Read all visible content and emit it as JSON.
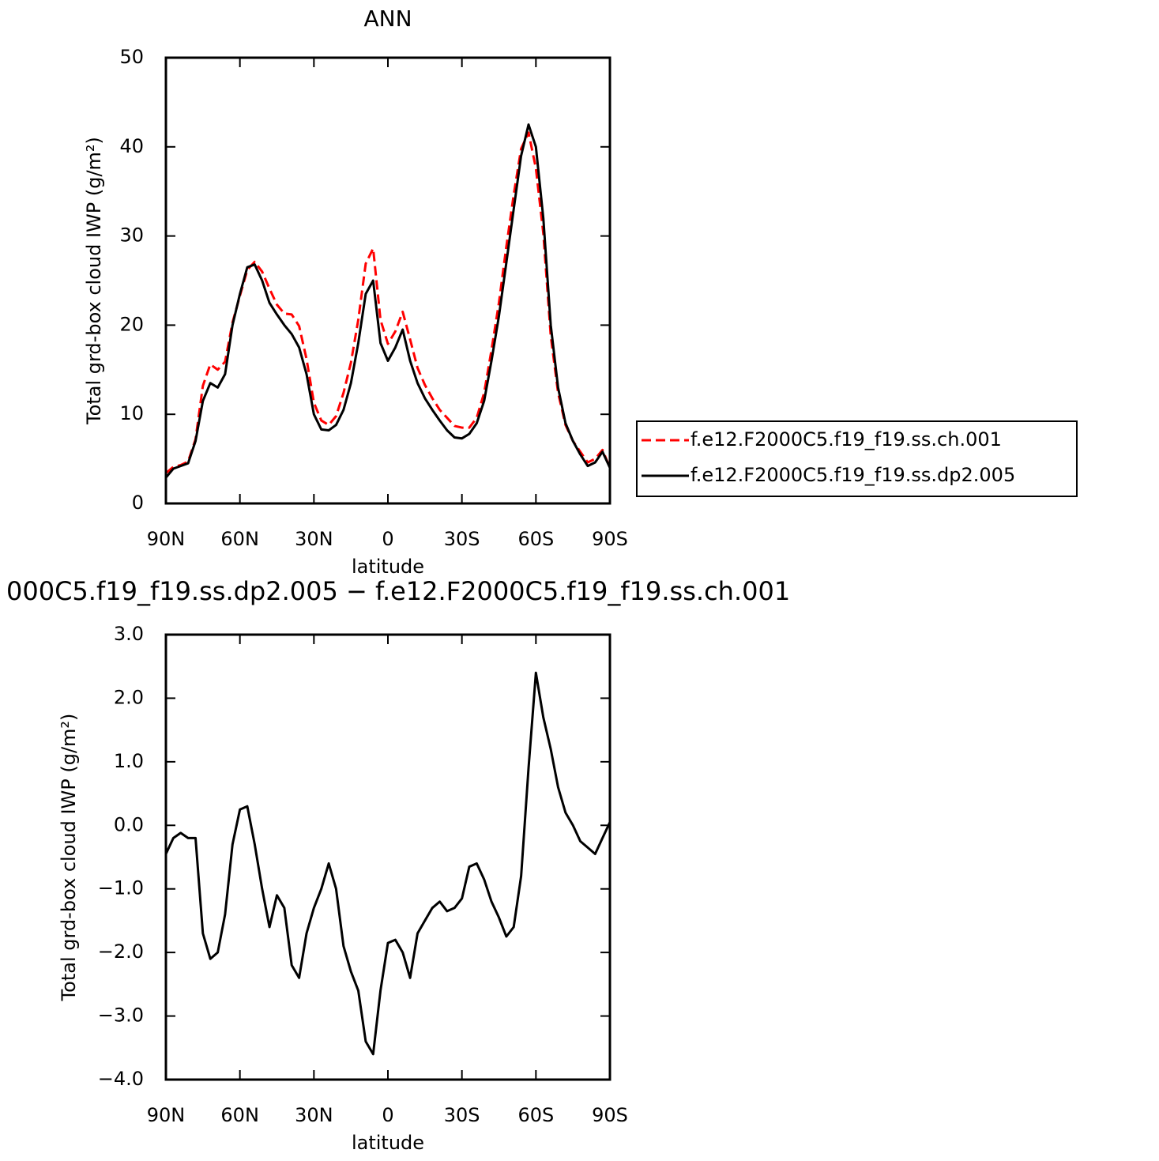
{
  "chart_data": [
    {
      "type": "line",
      "title": "ANN",
      "xlabel": "latitude",
      "ylabel": "Total grd-box cloud IWP (g/m²)",
      "x": [
        90,
        87,
        84,
        81,
        78,
        75,
        72,
        69,
        66,
        63,
        60,
        57,
        54,
        51,
        48,
        45,
        42,
        39,
        36,
        33,
        30,
        27,
        24,
        21,
        18,
        15,
        12,
        9,
        6,
        3,
        0,
        -3,
        -6,
        -9,
        -12,
        -15,
        -18,
        -21,
        -24,
        -27,
        -30,
        -33,
        -36,
        -39,
        -42,
        -45,
        -48,
        -51,
        -54,
        -57,
        -60,
        -63,
        -66,
        -69,
        -72,
        -75,
        -78,
        -81,
        -84,
        -87,
        -90
      ],
      "xlim": [
        90,
        -90
      ],
      "xticks": [
        {
          "value": 90,
          "label": "90N"
        },
        {
          "value": 60,
          "label": "60N"
        },
        {
          "value": 30,
          "label": "30N"
        },
        0,
        {
          "value": -30,
          "label": "30S"
        },
        {
          "value": -60,
          "label": "60S"
        },
        {
          "value": -90,
          "label": "90S"
        }
      ],
      "ylim": [
        0,
        50
      ],
      "yticks": [
        0,
        10,
        20,
        30,
        40,
        50
      ],
      "legend": "right",
      "series": [
        {
          "name": "f.e12.F2000C5.f19_f19.ss.ch.001",
          "color": "#ff0000",
          "dash": true,
          "values": [
            3.4,
            4.1,
            4.3,
            4.7,
            7.2,
            13.2,
            15.6,
            15.0,
            15.9,
            20.3,
            23.3,
            26.2,
            27.1,
            26,
            24.1,
            22.3,
            21.3,
            21.2,
            19.9,
            16.2,
            11.3,
            9.3,
            8.8,
            9.8,
            12.4,
            15.8,
            20.6,
            26.9,
            28.6,
            20.6,
            17.9,
            19.3,
            21.5,
            18.4,
            15.2,
            13.3,
            11.8,
            10.5,
            9.6,
            8.7,
            8.5,
            8.5,
            9.6,
            12.4,
            17.2,
            22.5,
            28.8,
            34.6,
            39.8,
            41.6,
            37.6,
            30.3,
            18.8,
            12.4,
            8.8,
            7,
            5.8,
            4.6,
            5,
            6,
            4
          ]
        },
        {
          "name": "f.e12.F2000C5.f19_f19.ss.dp2.005",
          "color": "#000000",
          "dash": false,
          "values": [
            2.9,
            3.9,
            4.2,
            4.5,
            7,
            11.5,
            13.5,
            13.0,
            14.5,
            20,
            23.5,
            26.5,
            26.8,
            25,
            22.5,
            21.2,
            20,
            19,
            17.5,
            14.5,
            10,
            8.3,
            8.2,
            8.8,
            10.5,
            13.5,
            18,
            23.5,
            25,
            18,
            16,
            17.5,
            19.5,
            16,
            13.5,
            11.8,
            10.5,
            9.3,
            8.2,
            7.4,
            7.3,
            7.8,
            9,
            11.5,
            16,
            21,
            27,
            33,
            39,
            42.5,
            40,
            32,
            20,
            13,
            9,
            7,
            5.5,
            4.2,
            4.6,
            5.8,
            4
          ]
        }
      ]
    },
    {
      "type": "line",
      "title": "000C5.f19_f19.ss.dp2.005 − f.e12.F2000C5.f19_f19.ss.ch.001",
      "xlabel": "latitude",
      "ylabel": "Total grd-box cloud IWP (g/m²)",
      "x": [
        90,
        87,
        84,
        81,
        78,
        75,
        72,
        69,
        66,
        63,
        60,
        57,
        54,
        51,
        48,
        45,
        42,
        39,
        36,
        33,
        30,
        27,
        24,
        21,
        18,
        15,
        12,
        9,
        6,
        3,
        0,
        -3,
        -6,
        -9,
        -12,
        -15,
        -18,
        -21,
        -24,
        -27,
        -30,
        -33,
        -36,
        -39,
        -42,
        -45,
        -48,
        -51,
        -54,
        -57,
        -60,
        -63,
        -66,
        -69,
        -72,
        -75,
        -78,
        -81,
        -84,
        -87,
        -90
      ],
      "xlim": [
        90,
        -90
      ],
      "xticks": [
        {
          "value": 90,
          "label": "90N"
        },
        {
          "value": 60,
          "label": "60N"
        },
        {
          "value": 30,
          "label": "30N"
        },
        0,
        {
          "value": -30,
          "label": "30S"
        },
        {
          "value": -60,
          "label": "60S"
        },
        {
          "value": -90,
          "label": "90S"
        }
      ],
      "ylim": [
        -4,
        3
      ],
      "yticks": [
        {
          "value": -4,
          "label": "−4.0"
        },
        {
          "value": -3,
          "label": "−3.0"
        },
        {
          "value": -2,
          "label": "−2.0"
        },
        {
          "value": -1,
          "label": "−1.0"
        },
        {
          "value": 0,
          "label": "0.0"
        },
        {
          "value": 1,
          "label": "1.0"
        },
        {
          "value": 2,
          "label": "2.0"
        },
        {
          "value": 3,
          "label": "3.0"
        }
      ],
      "color": "#000000",
      "values": [
        -0.45,
        -0.2,
        -0.12,
        -0.2,
        -0.2,
        -1.7,
        -2.1,
        -2.0,
        -1.4,
        -0.3,
        0.25,
        0.3,
        -0.3,
        -1.0,
        -1.6,
        -1.1,
        -1.3,
        -2.2,
        -2.4,
        -1.7,
        -1.3,
        -1.0,
        -0.6,
        -1.0,
        -1.9,
        -2.3,
        -2.6,
        -3.4,
        -3.6,
        -2.6,
        -1.85,
        -1.8,
        -2.0,
        -2.4,
        -1.7,
        -1.5,
        -1.3,
        -1.2,
        -1.35,
        -1.3,
        -1.15,
        -0.65,
        -0.6,
        -0.85,
        -1.2,
        -1.45,
        -1.75,
        -1.6,
        -0.8,
        0.9,
        2.4,
        1.7,
        1.2,
        0.6,
        0.2,
        0.0,
        -0.25,
        -0.35,
        -0.45,
        -0.2,
        0.05
      ]
    }
  ]
}
